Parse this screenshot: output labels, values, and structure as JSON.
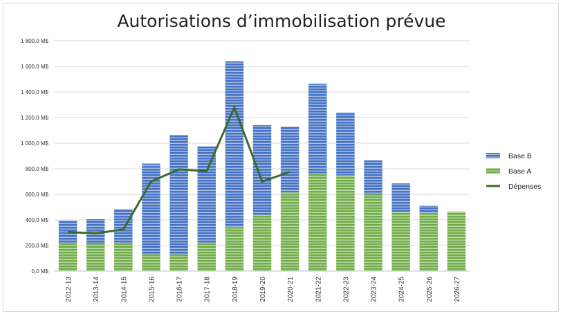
{
  "chart_data": {
    "type": "bar",
    "title": "Autorisations d’immobilisation prévue",
    "xlabel": "",
    "ylabel": "",
    "ylim": [
      0,
      1800
    ],
    "ytick_labels": [
      "0,0 M$",
      "200,0 M$",
      "400,0 M$",
      "600,0 M$",
      "800,0 M$",
      "1 000,0 M$",
      "1 200,0 M$",
      "1 400,0 M$",
      "1 600,0 M$",
      "1 800,0 M$"
    ],
    "categories": [
      "2012-13",
      "2013-14",
      "2014-15",
      "2015-16",
      "2016-17",
      "2017-18",
      "2018-19",
      "2019-20",
      "2020-21",
      "2021-22",
      "2022-23",
      "2023-24",
      "2024-25",
      "2025-26",
      "2026-27"
    ],
    "stacked": true,
    "grid": true,
    "legend_position": "right",
    "series": [
      {
        "name": "Base A",
        "kind": "bar",
        "color": "#70ad47",
        "values": [
          215,
          210,
          215,
          130,
          130,
          220,
          345,
          440,
          615,
          760,
          750,
          600,
          465,
          455,
          465
        ]
      },
      {
        "name": "Base B",
        "kind": "bar",
        "color": "#4472c4",
        "values": [
          180,
          195,
          270,
          710,
          935,
          755,
          1295,
          700,
          515,
          705,
          490,
          265,
          220,
          55,
          0
        ]
      },
      {
        "name": "Dépenses",
        "kind": "line",
        "color": "#3a6b2a",
        "values": [
          305,
          295,
          325,
          700,
          795,
          780,
          1280,
          700,
          775,
          null,
          null,
          null,
          null,
          null,
          null
        ]
      }
    ],
    "legend_order": [
      "Base B",
      "Base A",
      "Dépenses"
    ]
  }
}
